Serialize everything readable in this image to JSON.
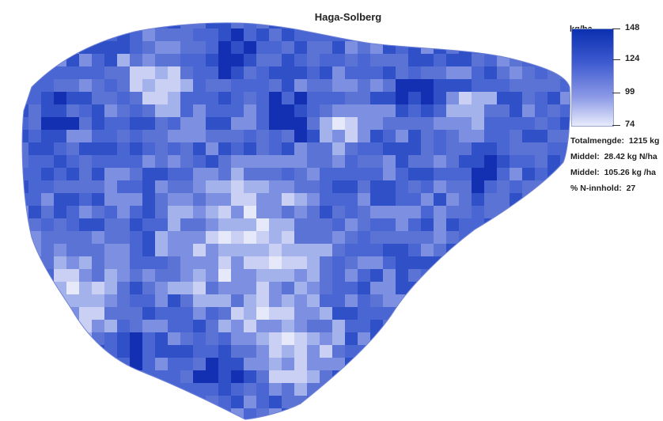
{
  "title": "Haga-Solberg",
  "legend": {
    "unit": "kg/ha",
    "ticks": [
      "148",
      "124",
      "99",
      "74"
    ],
    "color_high": "#0a2fb0",
    "color_low": "#e8ebfb"
  },
  "stats": [
    {
      "label": "Totalmengde:",
      "value": "1215 kg"
    },
    {
      "label": "Middel:",
      "value": "28.42 kg N/ha"
    },
    {
      "label": "Middel:",
      "value": "105.26 kg /ha"
    },
    {
      "label": "% N-innhold:",
      "value": "27"
    }
  ],
  "palette": [
    "#e6e9fa",
    "#c9d0f4",
    "#a4b2ec",
    "#7d8fe0",
    "#5c73d6",
    "#4a66d2",
    "#3050c8",
    "#1330b2"
  ]
}
